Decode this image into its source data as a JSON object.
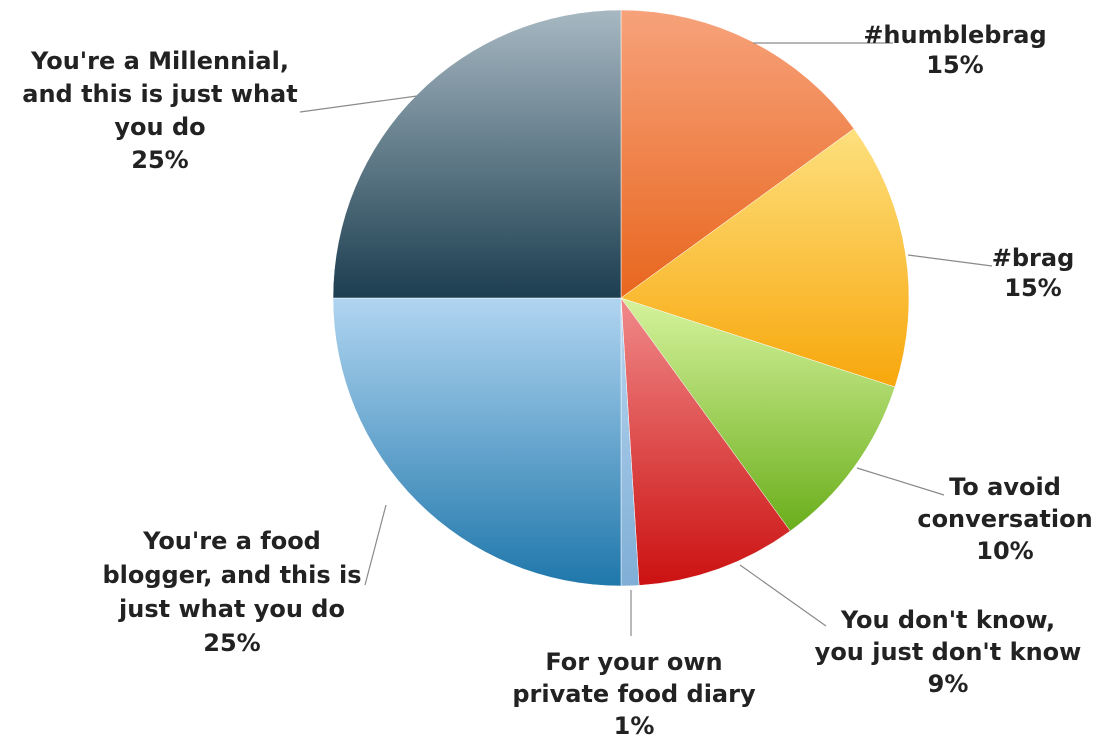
{
  "chart_data": {
    "type": "pie",
    "title": "",
    "categories": [
      "#humblebrag",
      "#brag",
      "To avoid conversation",
      "You don't know, you just don't know",
      "For your own private food diary",
      "You're a food blogger, and this is just what you do",
      "You're a Millennial, and this is just what you do"
    ],
    "values": [
      15,
      15,
      10,
      9,
      1,
      25,
      25
    ],
    "slices": [
      {
        "name": "humblebrag",
        "value": 15,
        "color_light": "#f7a27b",
        "color_dark": "#e8661e",
        "label_lines": [
          "#humblebrag",
          "15%"
        ]
      },
      {
        "name": "brag",
        "value": 15,
        "color_light": "#fde07e",
        "color_dark": "#f8a70c",
        "label_lines": [
          "#brag",
          "15%"
        ]
      },
      {
        "name": "avoid-conversation",
        "value": 10,
        "color_light": "#d6f39d",
        "color_dark": "#6aae1b",
        "label_lines": [
          "To avoid",
          "conversation",
          "10%"
        ]
      },
      {
        "name": "dont-know",
        "value": 9,
        "color_light": "#f08a8a",
        "color_dark": "#cc1111",
        "label_lines": [
          "You don't know,",
          "you just don't know",
          "9%"
        ]
      },
      {
        "name": "private-food-diary",
        "value": 1,
        "color_light": "#b8d6f0",
        "color_dark": "#7faed6",
        "label_lines": [
          "For your own",
          "private food diary",
          "1%"
        ]
      },
      {
        "name": "food-blogger",
        "value": 25,
        "color_light": "#b1d5f1",
        "color_dark": "#1f77ab",
        "label_lines": [
          "You're a food",
          "blogger, and this is",
          "just what you do",
          "25%"
        ]
      },
      {
        "name": "millennial",
        "value": 25,
        "color_light": "#a7b8c2",
        "color_dark": "#1c3e50",
        "label_lines": [
          "You're a Millennial,",
          "and this is just what",
          "you do",
          "25%"
        ]
      }
    ],
    "start_angle_deg": 0,
    "direction": "clockwise",
    "legend": "none"
  }
}
